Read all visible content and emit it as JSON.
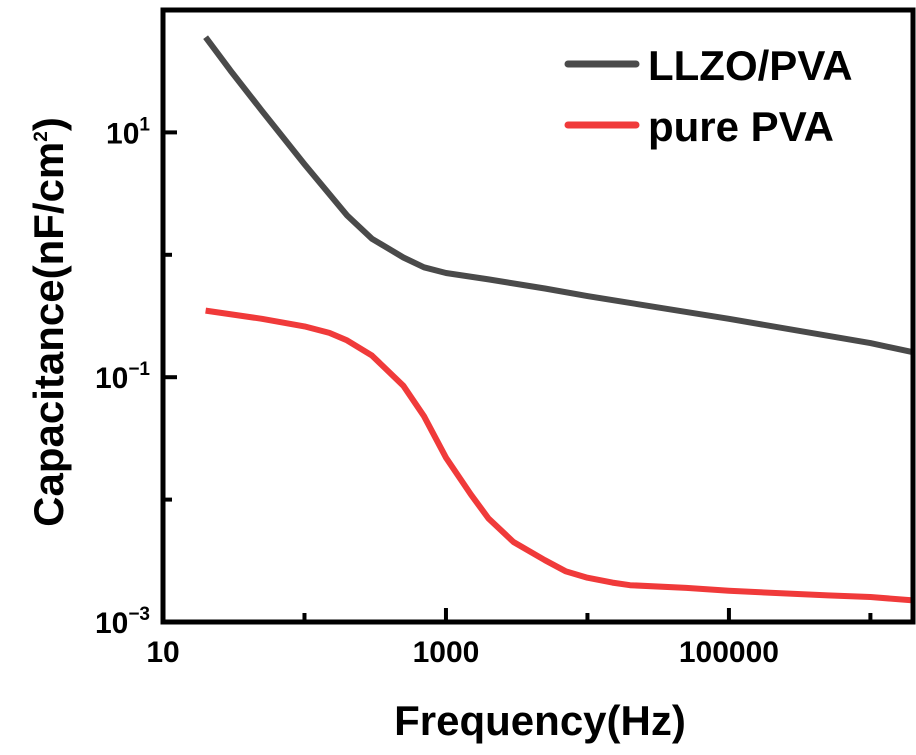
{
  "chart_data": {
    "type": "line",
    "title": "",
    "xlabel": "Frequency(Hz)",
    "ylabel": {
      "main": "Capacitance(nF/cm",
      "sup": "2",
      "close": ")"
    },
    "x_scale": "log",
    "y_scale": "log",
    "xlim": [
      10,
      2000000
    ],
    "ylim": [
      0.001,
      100
    ],
    "x_ticks": [
      {
        "value": 10,
        "label": "10"
      },
      {
        "value": 1000,
        "label": "1000"
      },
      {
        "value": 100000,
        "label": "100000"
      }
    ],
    "y_ticks": [
      {
        "value": 0.001,
        "base": "10",
        "exp": "−3"
      },
      {
        "value": 0.1,
        "base": "10",
        "exp": "−1"
      },
      {
        "value": 10,
        "base": "10",
        "exp": "1"
      }
    ],
    "grid": false,
    "legend_position": "top-right",
    "series": [
      {
        "name": "LLZO/PVA",
        "color": "#4a4a4a",
        "x": [
          20,
          30,
          50,
          100,
          200,
          300,
          500,
          700,
          1000,
          2000,
          5000,
          10000,
          100000,
          1000000,
          2000000
        ],
        "y": [
          60,
          32,
          15,
          5.5,
          2.1,
          1.35,
          0.95,
          0.79,
          0.71,
          0.63,
          0.53,
          0.46,
          0.3,
          0.19,
          0.16
        ]
      },
      {
        "name": "pure PVA",
        "color": "#f03a3a",
        "x": [
          20,
          50,
          100,
          150,
          200,
          300,
          500,
          700,
          1000,
          1500,
          2000,
          3000,
          5000,
          7000,
          10000,
          15000,
          20000,
          50000,
          100000,
          500000,
          1000000,
          2000000
        ],
        "y": [
          0.35,
          0.3,
          0.26,
          0.23,
          0.2,
          0.15,
          0.085,
          0.048,
          0.022,
          0.011,
          0.007,
          0.0045,
          0.0032,
          0.0026,
          0.0023,
          0.0021,
          0.002,
          0.0019,
          0.0018,
          0.00165,
          0.0016,
          0.0015
        ]
      }
    ]
  }
}
